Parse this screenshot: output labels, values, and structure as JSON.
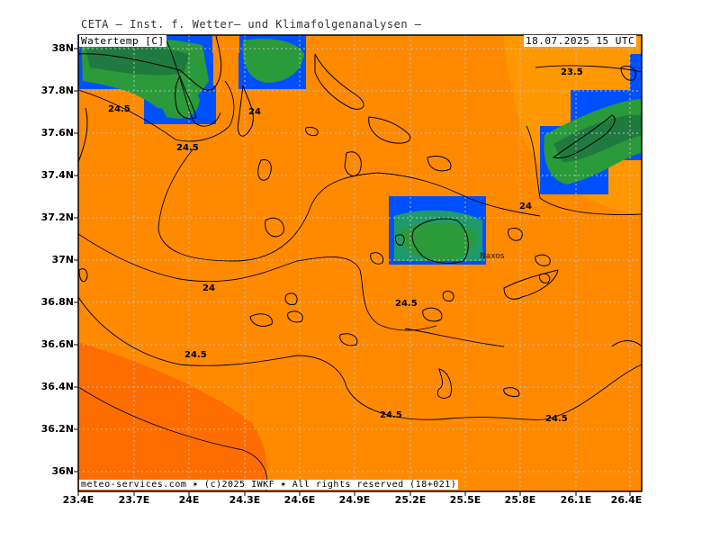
{
  "header": {
    "title": "CETA — Inst. f. Wetter— und Klimafolgenanalysen —",
    "param_label": "Watertemp [C]",
    "datetime_label": "18.07.2025 15 UTC",
    "footer_label": "meteo-services.com ✶ (c)2025 IWKF ✶ All rights reserved (18+021)"
  },
  "map": {
    "lat_labels": [
      "38N",
      "37.8N",
      "37.6N",
      "37.4N",
      "37.2N",
      "37N",
      "36.8N",
      "36.6N",
      "36.4N",
      "36.2N",
      "36N"
    ],
    "lon_labels": [
      "23.4E",
      "23.7E",
      "24E",
      "24.3E",
      "24.6E",
      "24.9E",
      "25.2E",
      "25.5E",
      "25.8E",
      "26.1E",
      "26.4E"
    ],
    "contour_labels": [
      "24.5",
      "24",
      "24.5",
      "23.5",
      "24",
      "24",
      "24.5",
      "24.5",
      "24.5",
      "24.5"
    ],
    "place_labels": [
      "Naxos"
    ],
    "colors": {
      "sea_warm": "#ff8800",
      "sea_hot": "#ff6a00",
      "sea_cool": "#ff9a00",
      "land_green": "#2a9a3a",
      "land_dark": "#1f7a3f",
      "land_blue": "#0040ff",
      "grid": "#bdbdbd",
      "contour": "#000000"
    }
  }
}
